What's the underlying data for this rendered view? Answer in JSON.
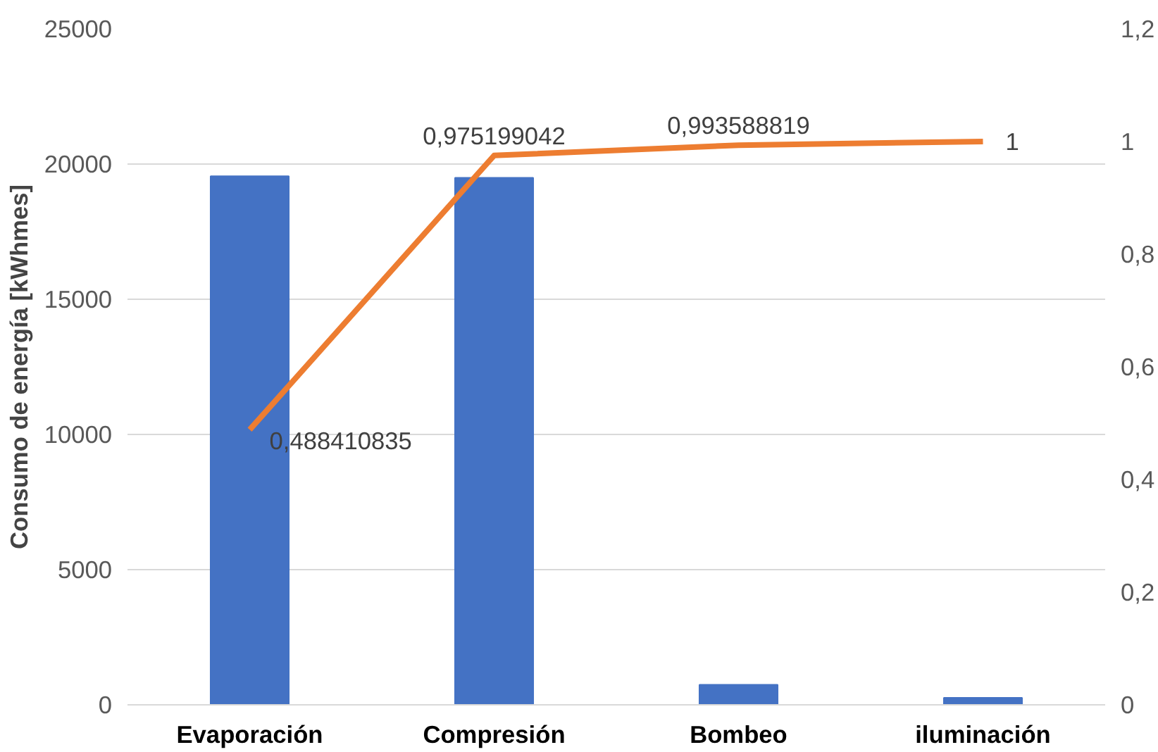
{
  "chart_data": {
    "type": "bar",
    "categories": [
      "Evaporación",
      "Compresión",
      "Bombeo",
      "iluminación"
    ],
    "ylabel": "Consumo de energía [kWhmes]",
    "ylim": [
      0,
      25000
    ],
    "yticks": [
      0,
      5000,
      10000,
      15000,
      20000,
      25000
    ],
    "y2lim": [
      0,
      1.2
    ],
    "y2ticks": [
      0,
      {
        "value": 0.2,
        "label": "0,2"
      },
      {
        "value": 0.4,
        "label": "0,4"
      },
      {
        "value": 0.6,
        "label": "0,6"
      },
      {
        "value": 0.8,
        "label": "0,8"
      },
      1,
      {
        "value": 1.2,
        "label": "1,2"
      }
    ],
    "grid": "y",
    "series": [
      {
        "color": "#4472c4",
        "values": [
          19550,
          19490,
          740,
          260
        ]
      },
      {
        "type": "line",
        "axis": "y2",
        "color": "#ed7d31",
        "values": [
          0.488410835,
          0.975199042,
          0.993588819,
          1
        ],
        "value_labels": [
          "0,488410835",
          "0,975199042",
          "0,993588819",
          "1"
        ]
      }
    ]
  }
}
